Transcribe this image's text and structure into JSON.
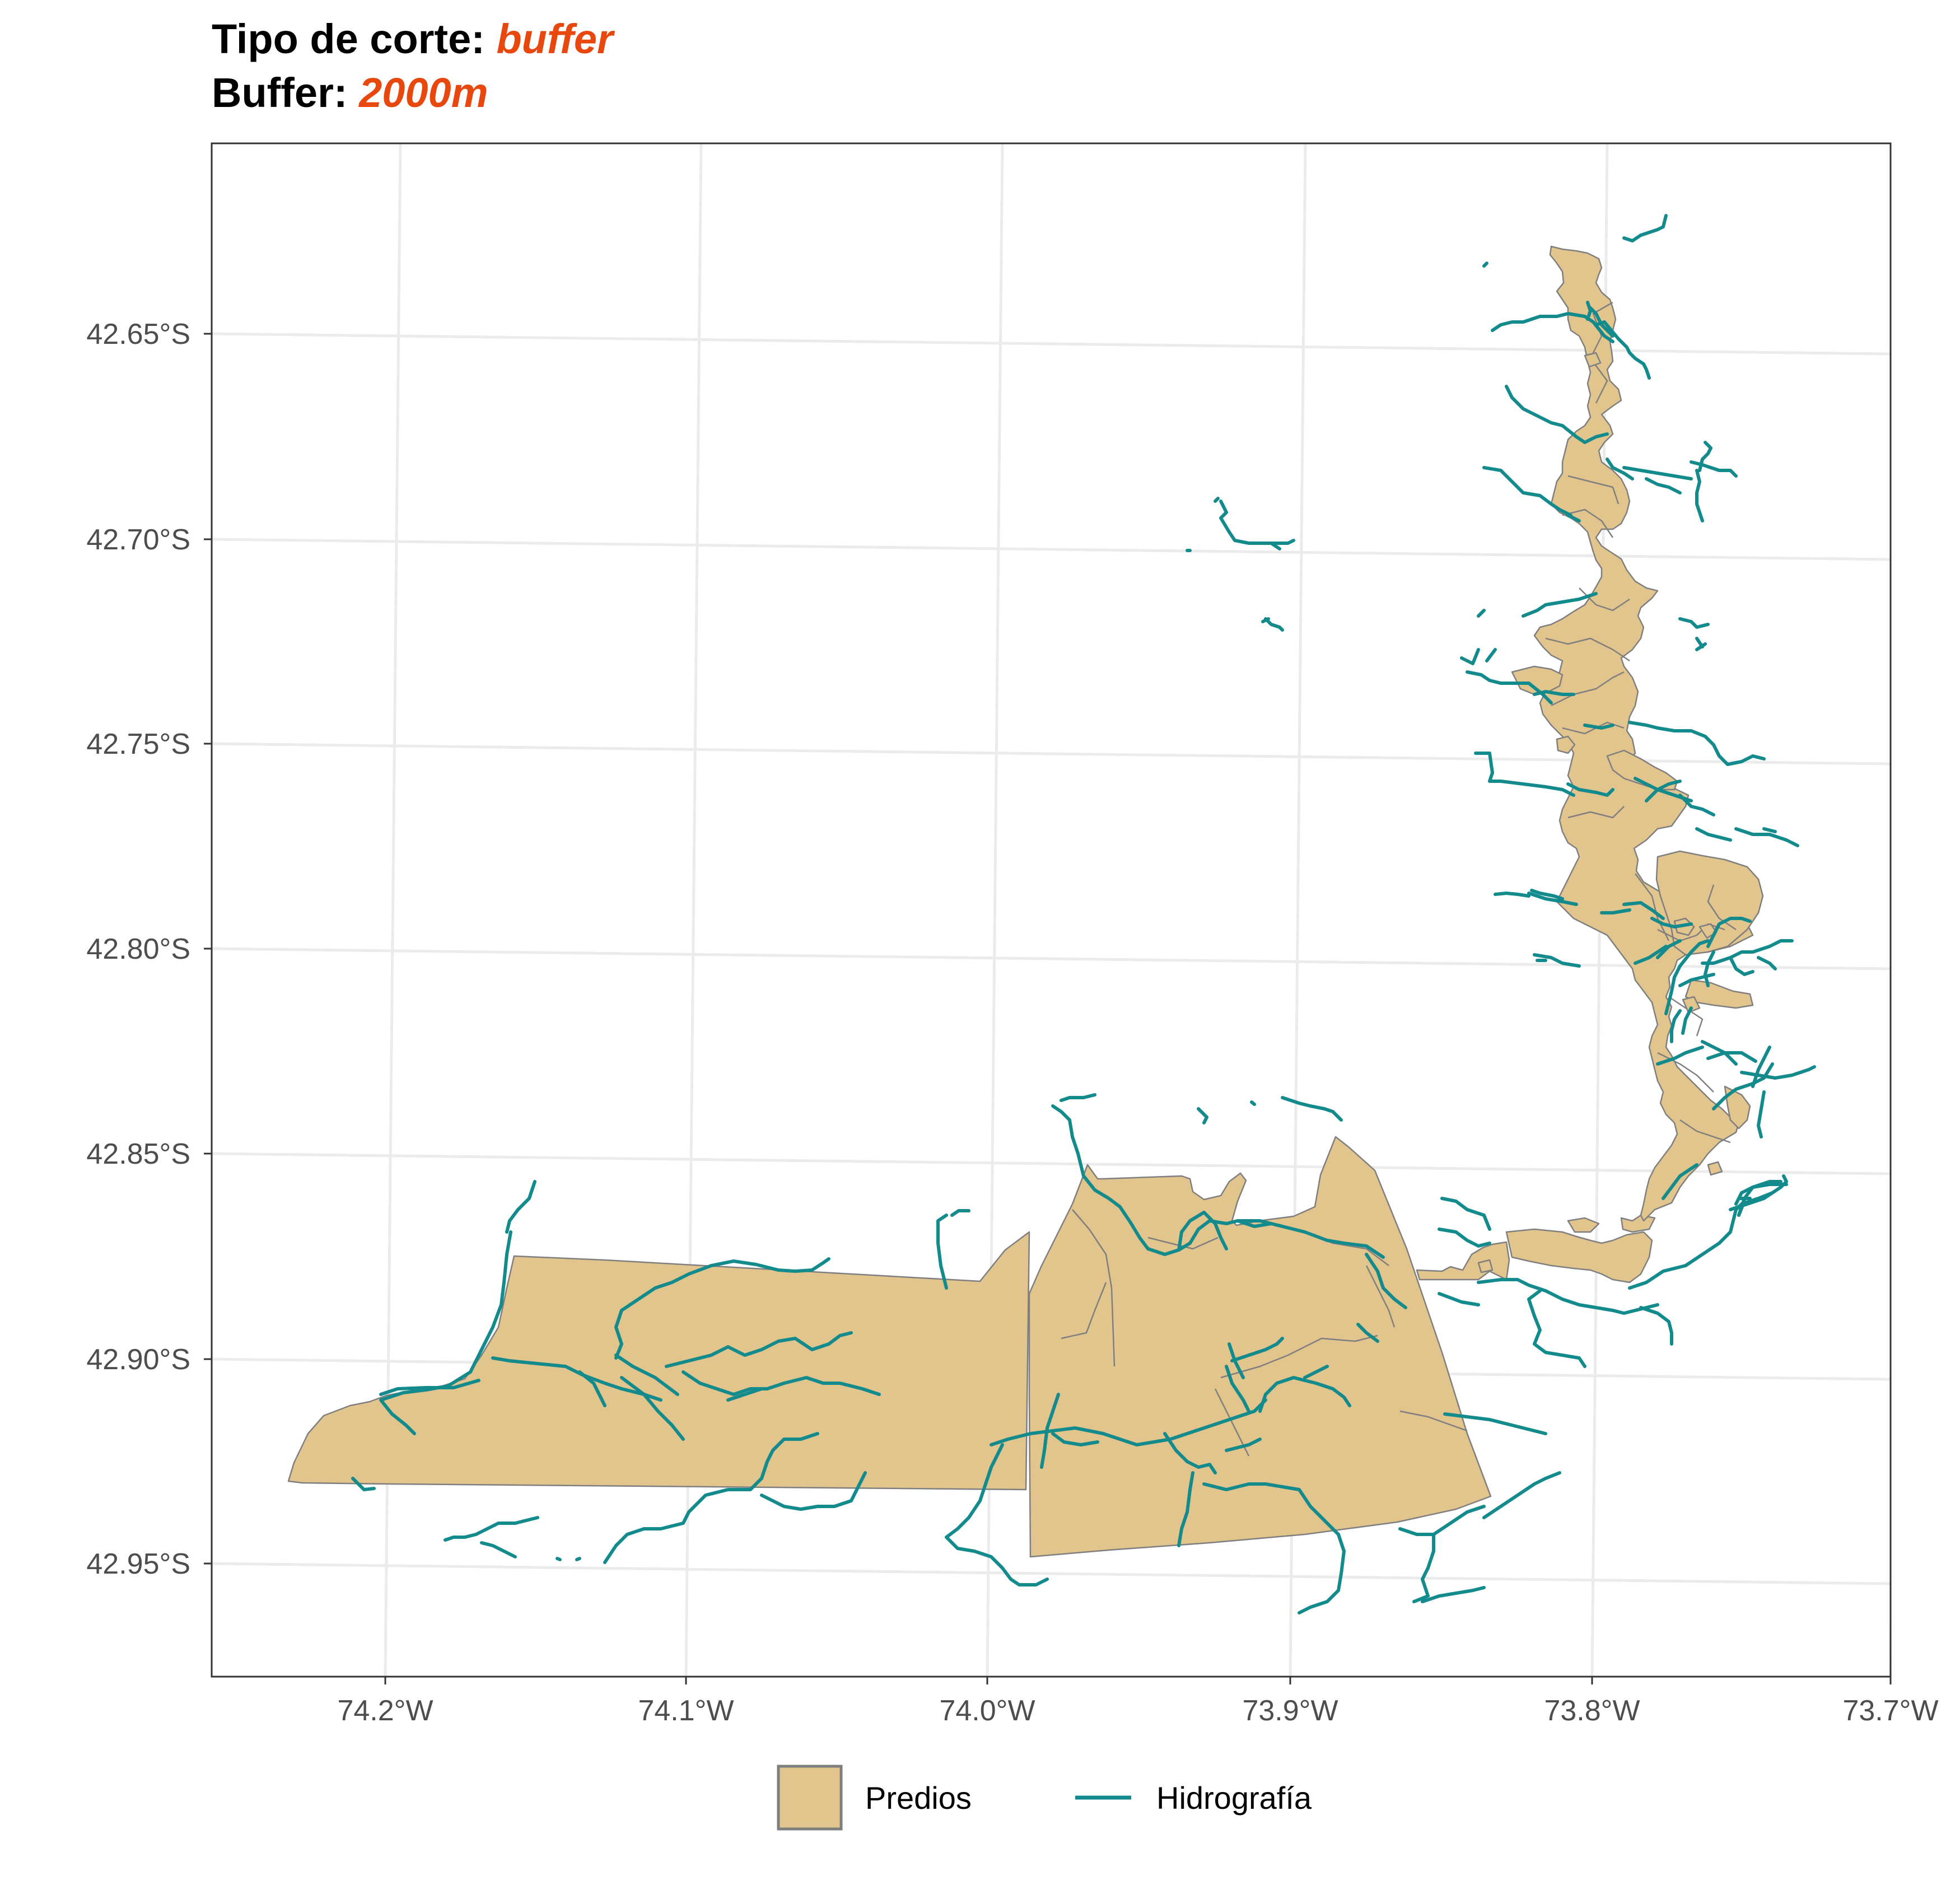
{
  "title": {
    "line1_label": "Tipo de corte: ",
    "line1_value": "buffer",
    "line2_label": "Buffer: ",
    "line2_value": "2000m"
  },
  "axes": {
    "x_ticks": [
      "74.2°W",
      "74.1°W",
      "74.0°W",
      "73.9°W",
      "73.8°W",
      "73.7°W"
    ],
    "y_ticks": [
      "42.65°S",
      "42.70°S",
      "42.75°S",
      "42.80°S",
      "42.85°S",
      "42.90°S",
      "42.95°S"
    ]
  },
  "legend": {
    "predios_label": "Predios",
    "hidrografia_label": "Hidrografía"
  },
  "colors": {
    "title_accent": "#E8470E",
    "predios_fill": "#E2C48D",
    "predios_border": "#7F7F7F",
    "hidrografia": "#138B8C",
    "grid": "#EBEBEB",
    "panel_border": "#333333"
  },
  "chart_data": {
    "type": "map",
    "layers": [
      "Predios",
      "Hidrografía"
    ],
    "xlim": [
      "74.26°W",
      "73.70°W"
    ],
    "ylim": [
      "42.98°S",
      "42.61°S"
    ],
    "grid": true,
    "legend_position": "bottom"
  }
}
